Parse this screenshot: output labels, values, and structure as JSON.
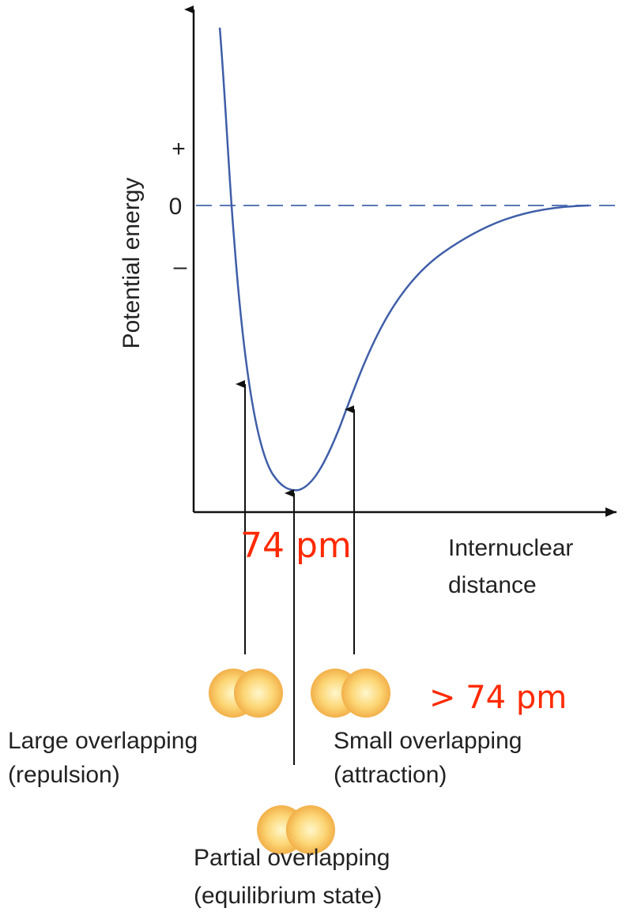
{
  "axes": {
    "y_label": "Potential energy",
    "y_ticks": [
      "+",
      "0",
      "–"
    ],
    "x_label": [
      "Internuclear",
      "distance"
    ]
  },
  "annotations": {
    "bond_length": "74 pm",
    "longer": "> 74 pm"
  },
  "states": [
    {
      "title": "Large overlapping",
      "note": "(repulsion)"
    },
    {
      "title": "Small overlapping",
      "note": "(attraction)"
    },
    {
      "title": "Partial overlapping",
      "note": "(equilibrium state)"
    }
  ]
}
